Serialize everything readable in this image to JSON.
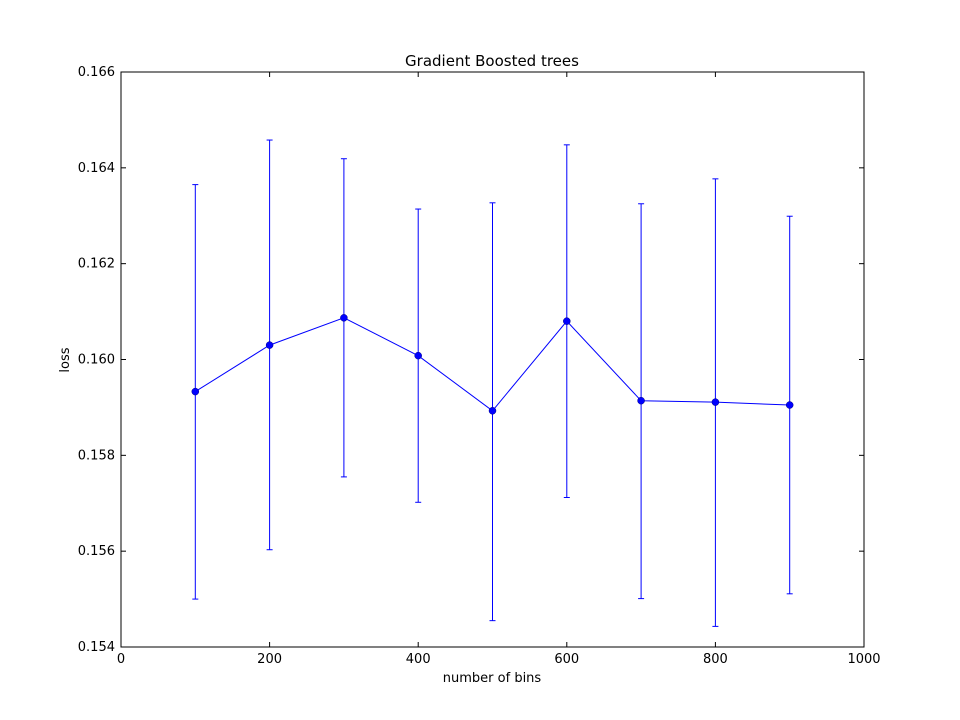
{
  "chart_data": {
    "type": "line",
    "title": "Gradient Boosted trees",
    "xlabel": "number of bins",
    "ylabel": "loss",
    "xlim": [
      0,
      1000
    ],
    "ylim": [
      0.154,
      0.166
    ],
    "xticks": [
      0,
      200,
      400,
      600,
      800,
      1000
    ],
    "xtick_labels": [
      "0",
      "200",
      "400",
      "600",
      "800",
      "1000"
    ],
    "yticks": [
      0.154,
      0.156,
      0.158,
      0.16,
      0.162,
      0.164,
      0.166
    ],
    "ytick_labels": [
      "0.154",
      "0.156",
      "0.158",
      "0.160",
      "0.162",
      "0.164",
      "0.166"
    ],
    "grid": false,
    "color": "#0000ff",
    "series": [
      {
        "x": [
          100,
          200,
          300,
          400,
          500,
          600,
          700,
          800,
          900
        ],
        "y": [
          0.15933,
          0.1603,
          0.16087,
          0.16008,
          0.15893,
          0.1608,
          0.15914,
          0.15911,
          0.15905
        ],
        "yerr_low": [
          0.155,
          0.15603,
          0.15755,
          0.15702,
          0.15455,
          0.15712,
          0.15501,
          0.15443,
          0.15511
        ],
        "yerr_high": [
          0.16365,
          0.16458,
          0.16419,
          0.16314,
          0.16327,
          0.16448,
          0.16325,
          0.16377,
          0.16299
        ]
      }
    ]
  }
}
